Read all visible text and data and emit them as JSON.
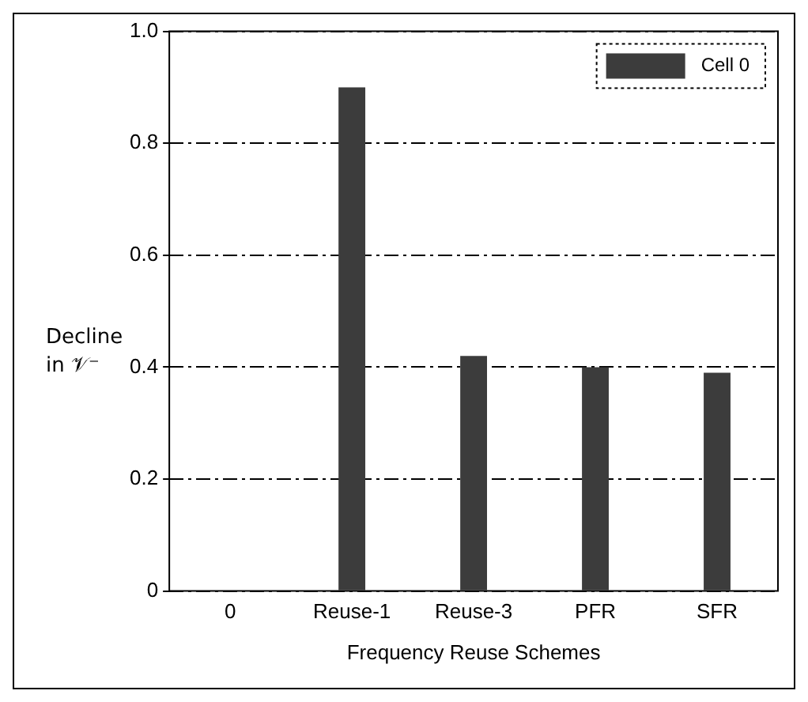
{
  "chart_data": {
    "type": "bar",
    "xlabel": "Frequency Reuse Schemes",
    "ylabel": "Decline in 𝒱⁻",
    "categories": [
      "0",
      "Reuse-1",
      "Reuse-3",
      "PFR",
      "SFR"
    ],
    "series": [
      {
        "name": "Cell 0",
        "color": "#3c3c3c",
        "values": [
          0,
          0.9,
          0.42,
          0.4,
          0.39
        ]
      }
    ],
    "ylim": [
      0,
      1.0
    ],
    "yticks": [
      {
        "value": 0,
        "label": "0"
      },
      0.2,
      0.4,
      0.6,
      0.8,
      {
        "value": 1,
        "label": "1.0"
      }
    ],
    "grid": "y",
    "legend": "top right"
  }
}
